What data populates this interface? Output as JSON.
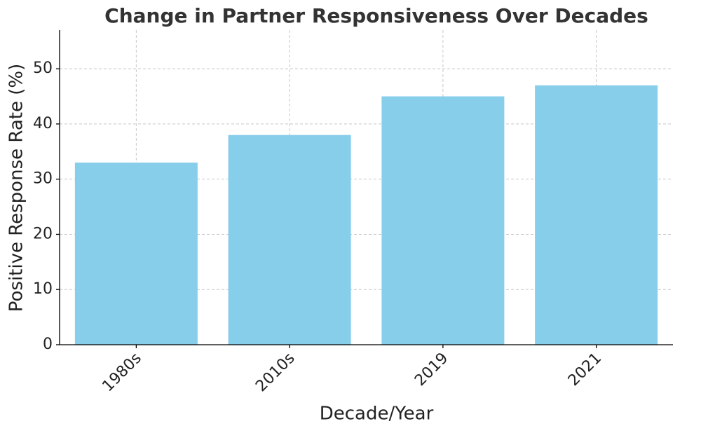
{
  "chart_data": {
    "type": "bar",
    "title": "Change in Partner Responsiveness Over Decades",
    "x_label": "Decade/Year",
    "y_label": "Positive Response Rate (%)",
    "categories": [
      "1980s",
      "2010s",
      "2019",
      "2021"
    ],
    "values": [
      33,
      38,
      45,
      47
    ],
    "color": "#87ceeb",
    "ylim": [
      0,
      57
    ],
    "yticks": [
      0,
      10,
      20,
      30,
      40,
      50
    ],
    "grid": true
  }
}
